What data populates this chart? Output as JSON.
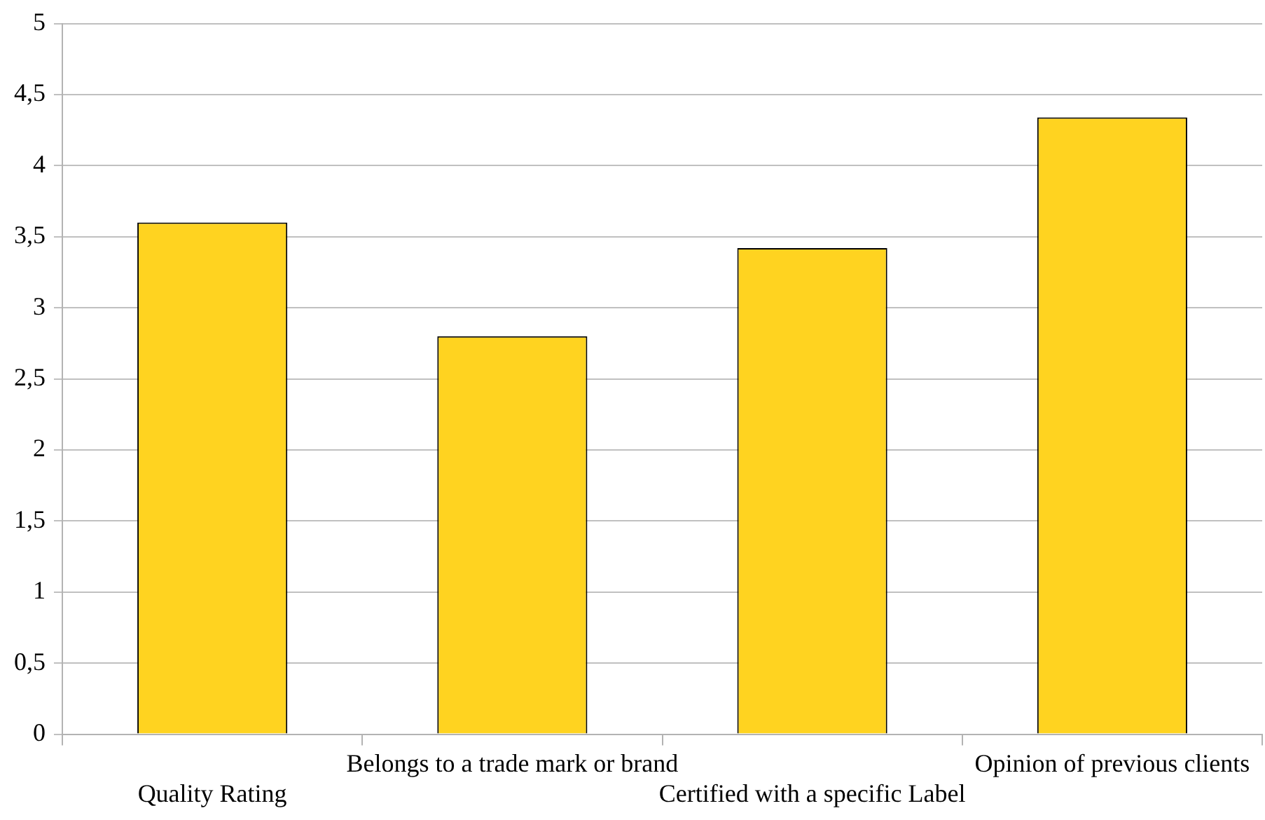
{
  "chart_data": {
    "type": "bar",
    "categories": [
      "Quality Rating",
      "Belongs to a trade mark or brand",
      "Certified with a specific Label",
      "Opinion of previous clients"
    ],
    "values": [
      3.6,
      2.8,
      3.42,
      4.34
    ],
    "color": "#ffd320",
    "ylim": [
      0,
      5
    ],
    "yticks": [
      0,
      {
        "value": 0.5,
        "label": "0,5"
      },
      1,
      {
        "value": 1.5,
        "label": "1,5"
      },
      2,
      {
        "value": 2.5,
        "label": "2,5"
      },
      3,
      {
        "value": 3.5,
        "label": "3,5"
      },
      4,
      {
        "value": 4.5,
        "label": "4,5"
      },
      5
    ],
    "grid": "y",
    "legend": false
  }
}
